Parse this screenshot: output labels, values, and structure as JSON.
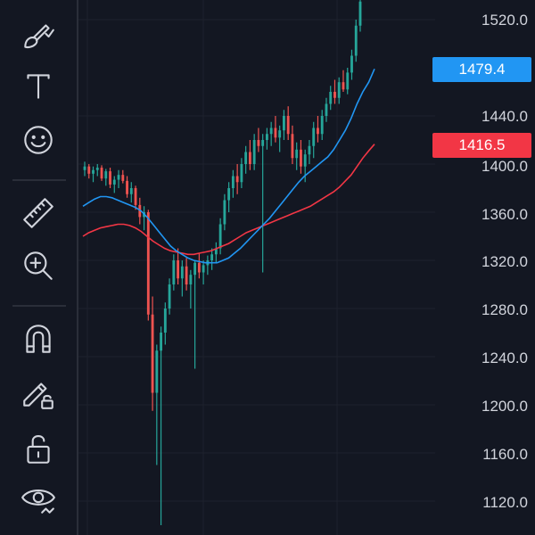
{
  "toolbar": {
    "tools": [
      {
        "name": "brush-tool",
        "icon": "brush-icon"
      },
      {
        "name": "text-tool",
        "icon": "text-icon"
      },
      {
        "name": "emoji-tool",
        "icon": "smiley-icon"
      },
      {
        "name": "ruler-tool",
        "icon": "ruler-icon"
      },
      {
        "name": "zoom-tool",
        "icon": "zoom-in-icon"
      },
      {
        "name": "magnet-tool",
        "icon": "magnet-icon"
      },
      {
        "name": "lock-drawing-tool",
        "icon": "pencil-lock-icon"
      },
      {
        "name": "lock-tool",
        "icon": "unlock-icon"
      },
      {
        "name": "visibility-tool",
        "icon": "eye-icon"
      }
    ]
  },
  "price_axis": {
    "labels": [
      "1520.0",
      "1440.0",
      "1400.0",
      "1360.0",
      "1320.0",
      "1280.0",
      "1240.0",
      "1200.0",
      "1160.0",
      "1120.0"
    ]
  },
  "badges": {
    "blue": {
      "value": "1479.4",
      "color": "#2196f3"
    },
    "red": {
      "value": "1416.5",
      "color": "#f23645"
    }
  },
  "colors": {
    "up": "#26a69a",
    "down": "#ef5350",
    "ma_fast": "#2196f3",
    "ma_slow": "#f23645",
    "grid": "#1e222d",
    "background": "#131722"
  },
  "chart_data": {
    "type": "candlestick",
    "ylim": [
      1100,
      1540
    ],
    "ohlc": [
      [
        1395,
        1402,
        1390,
        1398
      ],
      [
        1398,
        1400,
        1388,
        1392
      ],
      [
        1392,
        1398,
        1385,
        1395
      ],
      [
        1395,
        1400,
        1390,
        1397
      ],
      [
        1397,
        1399,
        1386,
        1388
      ],
      [
        1388,
        1396,
        1382,
        1394
      ],
      [
        1394,
        1397,
        1380,
        1383
      ],
      [
        1383,
        1390,
        1376,
        1387
      ],
      [
        1387,
        1395,
        1380,
        1391
      ],
      [
        1391,
        1395,
        1384,
        1386
      ],
      [
        1386,
        1390,
        1372,
        1375
      ],
      [
        1375,
        1385,
        1368,
        1380
      ],
      [
        1380,
        1382,
        1362,
        1366
      ],
      [
        1366,
        1372,
        1350,
        1356
      ],
      [
        1356,
        1365,
        1345,
        1360
      ],
      [
        1360,
        1362,
        1270,
        1275
      ],
      [
        1275,
        1290,
        1195,
        1210
      ],
      [
        1210,
        1250,
        1150,
        1245
      ],
      [
        1245,
        1265,
        1100,
        1260
      ],
      [
        1260,
        1285,
        1250,
        1280
      ],
      [
        1280,
        1305,
        1275,
        1300
      ],
      [
        1300,
        1325,
        1295,
        1320
      ],
      [
        1320,
        1330,
        1300,
        1305
      ],
      [
        1305,
        1320,
        1290,
        1315
      ],
      [
        1315,
        1322,
        1295,
        1300
      ],
      [
        1300,
        1312,
        1280,
        1308
      ],
      [
        1308,
        1320,
        1230,
        1318
      ],
      [
        1318,
        1326,
        1305,
        1310
      ],
      [
        1310,
        1320,
        1300,
        1316
      ],
      [
        1316,
        1324,
        1308,
        1320
      ],
      [
        1320,
        1330,
        1312,
        1325
      ],
      [
        1325,
        1335,
        1318,
        1330
      ],
      [
        1330,
        1355,
        1325,
        1350
      ],
      [
        1350,
        1375,
        1345,
        1370
      ],
      [
        1370,
        1385,
        1360,
        1380
      ],
      [
        1380,
        1395,
        1372,
        1390
      ],
      [
        1390,
        1400,
        1375,
        1385
      ],
      [
        1385,
        1405,
        1380,
        1400
      ],
      [
        1400,
        1415,
        1392,
        1410
      ],
      [
        1410,
        1420,
        1395,
        1400
      ],
      [
        1400,
        1425,
        1395,
        1420
      ],
      [
        1420,
        1430,
        1410,
        1415
      ],
      [
        1415,
        1425,
        1310,
        1420
      ],
      [
        1420,
        1430,
        1412,
        1425
      ],
      [
        1425,
        1435,
        1415,
        1430
      ],
      [
        1430,
        1440,
        1418,
        1422
      ],
      [
        1422,
        1432,
        1410,
        1428
      ],
      [
        1428,
        1445,
        1420,
        1440
      ],
      [
        1440,
        1448,
        1420,
        1425
      ],
      [
        1425,
        1432,
        1400,
        1405
      ],
      [
        1405,
        1418,
        1395,
        1412
      ],
      [
        1412,
        1420,
        1392,
        1398
      ],
      [
        1398,
        1412,
        1385,
        1408
      ],
      [
        1408,
        1420,
        1400,
        1415
      ],
      [
        1415,
        1435,
        1405,
        1430
      ],
      [
        1430,
        1440,
        1418,
        1425
      ],
      [
        1425,
        1445,
        1420,
        1440
      ],
      [
        1440,
        1455,
        1435,
        1450
      ],
      [
        1450,
        1465,
        1445,
        1460
      ],
      [
        1460,
        1470,
        1450,
        1455
      ],
      [
        1455,
        1472,
        1450,
        1468
      ],
      [
        1468,
        1478,
        1460,
        1462
      ],
      [
        1462,
        1480,
        1458,
        1476
      ],
      [
        1476,
        1495,
        1470,
        1490
      ],
      [
        1490,
        1520,
        1485,
        1515
      ],
      [
        1515,
        1540,
        1510,
        1535
      ]
    ],
    "ma_fast": [
      1365,
      1368,
      1371,
      1373,
      1373,
      1372,
      1370,
      1368,
      1366,
      1364,
      1361,
      1356,
      1350,
      1344,
      1338,
      1332,
      1328,
      1325,
      1322,
      1320,
      1319,
      1318,
      1318,
      1318,
      1320,
      1322,
      1326,
      1330,
      1335,
      1340,
      1345,
      1350,
      1355,
      1361,
      1367,
      1373,
      1379,
      1385,
      1390,
      1394,
      1398,
      1402,
      1406,
      1412,
      1420,
      1428,
      1438,
      1450,
      1460,
      1468,
      1479
    ],
    "ma_slow": [
      1340,
      1343,
      1345,
      1347,
      1348,
      1349,
      1350,
      1350,
      1349,
      1347,
      1344,
      1340,
      1336,
      1333,
      1330,
      1328,
      1327,
      1326,
      1325,
      1325,
      1326,
      1327,
      1328,
      1330,
      1332,
      1334,
      1337,
      1340,
      1343,
      1345,
      1347,
      1349,
      1351,
      1353,
      1355,
      1357,
      1359,
      1361,
      1363,
      1365,
      1368,
      1371,
      1374,
      1377,
      1381,
      1386,
      1391,
      1398,
      1405,
      1411,
      1416.5
    ]
  }
}
